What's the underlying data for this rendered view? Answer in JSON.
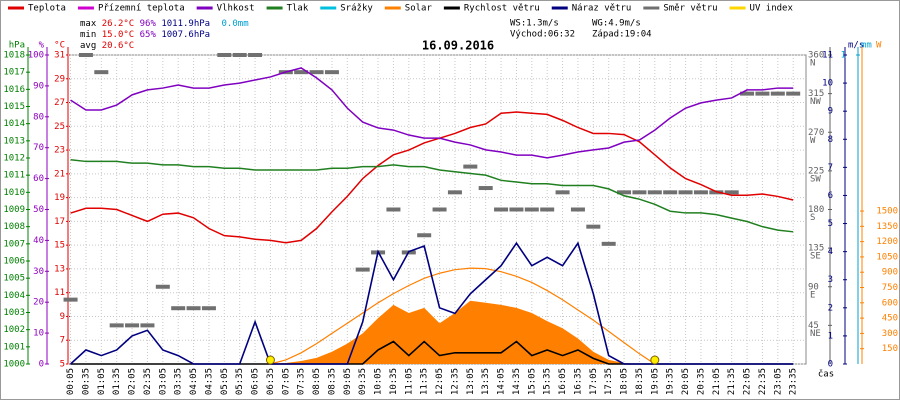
{
  "chart_data": {
    "type": "weather",
    "title": "16.09.2016",
    "x_label": "čas",
    "categories": [
      "00:05",
      "00:35",
      "01:05",
      "01:35",
      "02:05",
      "02:35",
      "03:05",
      "03:35",
      "04:05",
      "04:35",
      "05:05",
      "05:35",
      "06:05",
      "06:35",
      "07:05",
      "07:35",
      "08:05",
      "08:35",
      "09:05",
      "09:35",
      "10:05",
      "10:35",
      "11:05",
      "11:35",
      "12:05",
      "12:35",
      "13:05",
      "13:35",
      "14:05",
      "14:35",
      "15:05",
      "15:35",
      "16:05",
      "16:35",
      "17:05",
      "17:35",
      "18:05",
      "18:35",
      "19:05",
      "19:35",
      "20:05",
      "20:35",
      "21:05",
      "21:35",
      "22:05",
      "22:35",
      "23:05",
      "23:35"
    ],
    "xlim": [
      "00:00",
      "24:00"
    ],
    "axes": {
      "hpa": {
        "title": "hPa",
        "color": "#008000",
        "lim": [
          1000,
          1018
        ],
        "ticks": [
          1000,
          1001,
          1002,
          1003,
          1004,
          1005,
          1006,
          1007,
          1008,
          1009,
          1010,
          1011,
          1012,
          1013,
          1014,
          1015,
          1016,
          1017,
          1018
        ]
      },
      "pct": {
        "title": "%",
        "color": "#9000c0",
        "lim": [
          0,
          100
        ],
        "ticks": [
          0,
          10,
          20,
          30,
          40,
          50,
          60,
          70,
          80,
          90,
          100
        ]
      },
      "temp": {
        "title": "°C",
        "color": "#e00000",
        "lim": [
          5,
          31
        ],
        "ticks": [
          5,
          7,
          9,
          11,
          13,
          15,
          17,
          19,
          21,
          23,
          25,
          27,
          29,
          31
        ],
        "grid": true
      },
      "dir": {
        "color": "#606060",
        "lim": [
          0,
          360
        ],
        "ticks": [
          45,
          90,
          135,
          180,
          225,
          270,
          315,
          360
        ],
        "tick_names": [
          "NE",
          "E",
          "SE",
          "S",
          "SW",
          "W",
          "NW",
          "N"
        ]
      },
      "ms": {
        "title": "m/s",
        "color": "#000080",
        "lim": [
          0,
          11
        ],
        "ticks": [
          0,
          1,
          2,
          3,
          4,
          5,
          6,
          7,
          8,
          9,
          10,
          11
        ]
      },
      "mm": {
        "title": "mm",
        "color": "#00a0d0",
        "lim": [
          0,
          1
        ],
        "ticks": [
          1
        ]
      },
      "w": {
        "title": "W",
        "color": "#ff8000",
        "lim": [
          0,
          3030
        ],
        "ticks": [
          150,
          300,
          450,
          600,
          750,
          900,
          1050,
          1200,
          1350,
          1500
        ]
      }
    },
    "series": [
      {
        "name": "Teplota",
        "color": "#e00000",
        "axis": "temp",
        "kind": "line",
        "values": [
          17.7,
          18.1,
          18.1,
          18.0,
          17.5,
          17.0,
          17.6,
          17.7,
          17.3,
          16.4,
          15.8,
          15.7,
          15.5,
          15.4,
          15.2,
          15.4,
          16.4,
          17.8,
          19.1,
          20.6,
          21.7,
          22.6,
          23.0,
          23.6,
          24.0,
          24.4,
          24.9,
          25.2,
          26.1,
          26.2,
          26.1,
          26.0,
          25.5,
          24.9,
          24.4,
          24.4,
          24.3,
          23.7,
          22.6,
          21.5,
          20.6,
          20.1,
          19.5,
          19.2,
          19.2,
          19.3,
          19.1,
          18.8
        ]
      },
      {
        "name": "Přízemní teplota",
        "color": "#d000d0"
      },
      {
        "name": "Vlhkost",
        "color": "#8000c0",
        "axis": "pct",
        "kind": "line",
        "values": [
          85.4,
          82.2,
          82.2,
          83.8,
          87.1,
          88.7,
          89.3,
          90.3,
          89.3,
          89.3,
          90.3,
          90.9,
          91.9,
          92.9,
          94.5,
          95.8,
          92.6,
          88.7,
          82.8,
          78.3,
          76.4,
          75.7,
          74.1,
          73.1,
          73.1,
          71.8,
          70.9,
          69.3,
          68.6,
          67.6,
          67.6,
          66.7,
          67.6,
          68.6,
          69.3,
          69.9,
          71.8,
          72.5,
          75.7,
          79.6,
          82.8,
          84.5,
          85.4,
          86.1,
          88.7,
          88.7,
          89.3,
          89.3
        ]
      },
      {
        "name": "Tlak",
        "color": "#208020",
        "axis": "hpa",
        "kind": "line",
        "values": [
          1011.9,
          1011.8,
          1011.8,
          1011.8,
          1011.7,
          1011.7,
          1011.6,
          1011.6,
          1011.5,
          1011.5,
          1011.4,
          1011.4,
          1011.3,
          1011.3,
          1011.3,
          1011.3,
          1011.3,
          1011.4,
          1011.4,
          1011.5,
          1011.5,
          1011.6,
          1011.5,
          1011.5,
          1011.3,
          1011.2,
          1011.1,
          1011.0,
          1010.7,
          1010.6,
          1010.5,
          1010.5,
          1010.4,
          1010.4,
          1010.4,
          1010.2,
          1009.8,
          1009.6,
          1009.3,
          1008.9,
          1008.8,
          1008.8,
          1008.7,
          1008.5,
          1008.3,
          1008.0,
          1007.8,
          1007.7
        ]
      },
      {
        "name": "Srážky",
        "color": "#00c0e0"
      },
      {
        "name": "Solar",
        "color": "#ff8000",
        "axis": "w",
        "kind": "area",
        "values": [
          0,
          0,
          0,
          0,
          0,
          0,
          0,
          0,
          0,
          0,
          0,
          0,
          0,
          0,
          10,
          30,
          60,
          120,
          200,
          300,
          450,
          580,
          500,
          550,
          400,
          500,
          620,
          600,
          580,
          550,
          500,
          420,
          350,
          250,
          120,
          40,
          10,
          0,
          0,
          0,
          0,
          0,
          0,
          0,
          0,
          0,
          0,
          0
        ]
      },
      {
        "name": "Rychlost větru",
        "color": "#000000",
        "axis": "ms",
        "kind": "line",
        "values": [
          0,
          0,
          0,
          0,
          0,
          0,
          0,
          0,
          0,
          0,
          0,
          0,
          0,
          0,
          0,
          0,
          0,
          0,
          0,
          0,
          0.5,
          0.8,
          0.3,
          0.8,
          0.3,
          0.4,
          0.4,
          0.4,
          0.4,
          0.8,
          0.3,
          0.5,
          0.3,
          0.5,
          0.2,
          0,
          0,
          0,
          0,
          0,
          0,
          0,
          0,
          0,
          0,
          0,
          0,
          0
        ]
      },
      {
        "name": "Náraz větru",
        "color": "#000080",
        "axis": "ms",
        "kind": "line",
        "values": [
          0,
          0.5,
          0.3,
          0.5,
          1.0,
          1.2,
          0.5,
          0.3,
          0,
          0,
          0,
          0,
          1.5,
          0,
          0,
          0,
          0,
          0,
          0,
          1.5,
          4.0,
          3.0,
          4.0,
          4.2,
          2.0,
          1.8,
          2.5,
          3.0,
          3.5,
          4.3,
          3.5,
          3.8,
          3.5,
          4.3,
          2.5,
          0.3,
          0,
          0,
          0,
          0,
          0,
          0,
          0,
          0,
          0,
          0,
          0,
          0
        ]
      },
      {
        "name": "Směr větru",
        "color": "#707070",
        "axis": "dir",
        "kind": "dash",
        "values": [
          75,
          360,
          340,
          45,
          45,
          45,
          90,
          65,
          65,
          65,
          360,
          360,
          360,
          null,
          340,
          340,
          340,
          340,
          null,
          110,
          130,
          180,
          130,
          150,
          180,
          200,
          230,
          205,
          180,
          180,
          180,
          180,
          200,
          180,
          160,
          140,
          200,
          200,
          200,
          200,
          200,
          200,
          200,
          200,
          315,
          315,
          315,
          315
        ]
      },
      {
        "name": "UV index",
        "color": "#ffd700"
      }
    ],
    "solar_theoretical": {
      "color": "#ff8000",
      "axis": "w",
      "values": [
        null,
        null,
        null,
        null,
        null,
        null,
        null,
        null,
        null,
        null,
        null,
        null,
        null,
        0,
        40,
        110,
        200,
        300,
        400,
        500,
        600,
        690,
        770,
        840,
        890,
        925,
        940,
        935,
        905,
        860,
        800,
        720,
        630,
        530,
        430,
        320,
        210,
        100,
        0,
        null,
        null,
        null,
        null,
        null,
        null,
        null,
        null,
        null
      ]
    },
    "stats": {
      "max": {
        "label": "max",
        "temp": "26.2°C",
        "hum": "96%",
        "press": "1011.9hPa",
        "rain": "0.0mm"
      },
      "min": {
        "label": "min",
        "temp": "15.0°C",
        "hum": "65%",
        "press": "1007.6hPa"
      },
      "avg": {
        "label": "avg",
        "temp": "20.6°C"
      },
      "wind": [
        "WS:1.3m/s",
        "WG:4.9m/s"
      ],
      "sun": [
        "Východ:06:32",
        "Západ:19:04"
      ]
    }
  }
}
